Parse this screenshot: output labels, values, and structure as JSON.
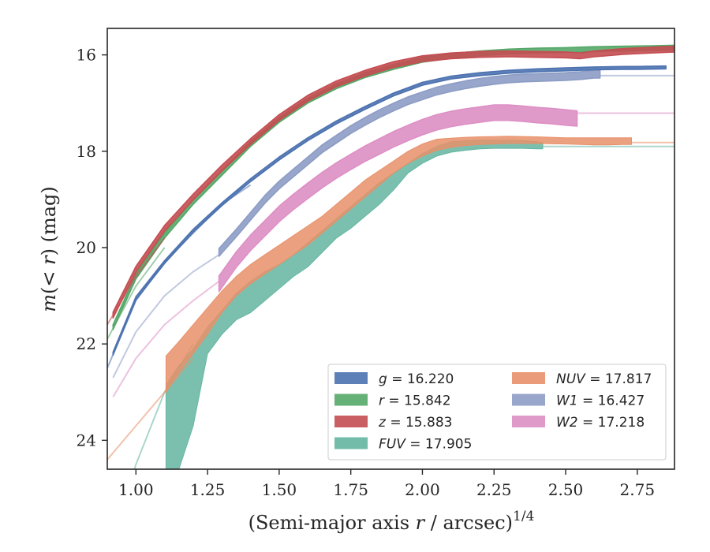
{
  "chart_data": {
    "type": "line",
    "xlabel": "(Semi-major axis r / arcsec)^1/4",
    "ylabel": "m(< r) (mag)",
    "xlim": [
      0.9,
      2.88
    ],
    "ylim": [
      24.6,
      15.45
    ],
    "y_inverted": true,
    "xticks": [
      1.0,
      1.25,
      1.5,
      1.75,
      2.0,
      2.25,
      2.5,
      2.75
    ],
    "xtick_labels": [
      "1.00",
      "1.25",
      "1.50",
      "1.75",
      "2.00",
      "2.25",
      "2.50",
      "2.75"
    ],
    "yticks": [
      16,
      18,
      20,
      22,
      24
    ],
    "ytick_labels": [
      "16",
      "18",
      "20",
      "22",
      "24"
    ],
    "legend_position": "lower-right",
    "legend": [
      {
        "key": "g",
        "text": "g = 16.220"
      },
      {
        "key": "r",
        "text": "r = 15.842"
      },
      {
        "key": "z",
        "text": "z = 15.883"
      },
      {
        "key": "FUV",
        "text": "FUV = 17.905"
      },
      {
        "key": "NUV",
        "text": "NUV = 17.817"
      },
      {
        "key": "W1",
        "text": "W1 = 16.427"
      },
      {
        "key": "W2",
        "text": "W2 = 17.218"
      }
    ],
    "series": [
      {
        "key": "g",
        "color": "#4c72b0",
        "total": 16.22,
        "band_width": 0.03,
        "extrap_x": [
          0.9,
          1.0,
          1.1,
          1.2,
          1.3,
          1.4
        ],
        "extrap_y": [
          22.5,
          21.1,
          20.3,
          19.7,
          19.1,
          18.7
        ],
        "x": [
          0.92,
          1.0,
          1.1,
          1.2,
          1.3,
          1.4,
          1.5,
          1.6,
          1.7,
          1.8,
          1.9,
          2.0,
          2.1,
          2.2,
          2.3,
          2.4,
          2.5,
          2.6,
          2.7,
          2.75,
          2.85
        ],
        "y": [
          22.2,
          21.05,
          20.3,
          19.65,
          19.1,
          18.6,
          18.15,
          17.75,
          17.4,
          17.1,
          16.82,
          16.6,
          16.47,
          16.4,
          16.35,
          16.32,
          16.3,
          16.28,
          16.27,
          16.27,
          16.26
        ]
      },
      {
        "key": "r",
        "color": "#55a868",
        "total": 15.842,
        "band_width": 0.05,
        "extrap_x": [
          0.9,
          1.0,
          1.1
        ],
        "extrap_y": [
          21.9,
          20.8,
          20.0
        ],
        "x": [
          0.92,
          1.0,
          1.1,
          1.2,
          1.3,
          1.4,
          1.5,
          1.6,
          1.7,
          1.8,
          1.9,
          2.0,
          2.1,
          2.2,
          2.3,
          2.4,
          2.5,
          2.6,
          2.7,
          2.8,
          2.88
        ],
        "y": [
          21.65,
          20.6,
          19.75,
          19.05,
          18.45,
          17.85,
          17.35,
          16.95,
          16.65,
          16.42,
          16.25,
          16.1,
          16.02,
          15.97,
          15.93,
          15.91,
          15.9,
          15.88,
          15.87,
          15.86,
          15.85
        ]
      },
      {
        "key": "z",
        "color": "#c44e52",
        "total": 15.883,
        "band_width": 0.06,
        "extrap_x": [
          0.9,
          1.0,
          1.1
        ],
        "extrap_y": [
          21.6,
          20.6,
          19.8
        ],
        "x": [
          0.92,
          1.0,
          1.1,
          1.2,
          1.3,
          1.4,
          1.5,
          1.6,
          1.7,
          1.8,
          1.9,
          2.0,
          2.1,
          2.2,
          2.3,
          2.4,
          2.5,
          2.55,
          2.6,
          2.7,
          2.8,
          2.88
        ],
        "y": [
          21.4,
          20.45,
          19.6,
          18.95,
          18.35,
          17.8,
          17.3,
          16.9,
          16.6,
          16.38,
          16.2,
          16.08,
          16.02,
          15.99,
          15.98,
          15.99,
          16.0,
          16.02,
          15.98,
          15.93,
          15.9,
          15.88
        ]
      },
      {
        "key": "FUV",
        "color": "#64b5a0",
        "total": 17.905,
        "band": true,
        "extrap_x": [
          0.9,
          1.0,
          1.1,
          1.2
        ],
        "extrap_y": [
          26.5,
          24.5,
          23.0,
          22.0
        ],
        "x": [
          1.105,
          1.15,
          1.2,
          1.25,
          1.3,
          1.35,
          1.4,
          1.45,
          1.5,
          1.55,
          1.6,
          1.65,
          1.7,
          1.75,
          1.8,
          1.85,
          1.9,
          1.95,
          2.0,
          2.05,
          2.1,
          2.15,
          2.2,
          2.25,
          2.3,
          2.35,
          2.4,
          2.42
        ],
        "y_low": [
          22.85,
          22.45,
          22.1,
          21.65,
          21.3,
          20.95,
          20.7,
          20.5,
          20.35,
          20.15,
          19.9,
          19.65,
          19.4,
          19.15,
          18.9,
          18.65,
          18.45,
          18.25,
          18.05,
          17.9,
          17.8,
          17.78,
          17.77,
          17.77,
          17.77,
          17.78,
          17.8,
          17.82
        ],
        "y_high": [
          25.0,
          24.6,
          23.7,
          22.2,
          21.8,
          21.5,
          21.35,
          21.1,
          20.85,
          20.6,
          20.4,
          20.1,
          19.8,
          19.6,
          19.35,
          19.1,
          18.8,
          18.45,
          18.25,
          18.1,
          18.02,
          17.98,
          17.95,
          17.94,
          17.94,
          17.94,
          17.95,
          17.95
        ],
        "after_x": [
          2.42,
          2.88
        ],
        "after_y": [
          17.9,
          17.9
        ]
      },
      {
        "key": "NUV",
        "color": "#e8906a",
        "total": 17.817,
        "band": true,
        "extrap_x": [
          0.9,
          1.0,
          1.1,
          1.2
        ],
        "extrap_y": [
          24.4,
          23.7,
          23.0,
          22.3
        ],
        "x": [
          1.105,
          1.15,
          1.2,
          1.25,
          1.3,
          1.35,
          1.4,
          1.45,
          1.5,
          1.55,
          1.6,
          1.65,
          1.7,
          1.75,
          1.8,
          1.85,
          1.9,
          1.95,
          2.0,
          2.05,
          2.1,
          2.15,
          2.2,
          2.3,
          2.4,
          2.5,
          2.6,
          2.65,
          2.7,
          2.73
        ],
        "y_low": [
          22.25,
          21.95,
          21.6,
          21.25,
          20.9,
          20.6,
          20.35,
          20.15,
          19.95,
          19.75,
          19.55,
          19.35,
          19.1,
          18.85,
          18.6,
          18.4,
          18.2,
          18.0,
          17.85,
          17.75,
          17.73,
          17.71,
          17.7,
          17.69,
          17.7,
          17.72,
          17.72,
          17.72,
          17.72,
          17.72
        ],
        "y_high": [
          23.0,
          22.6,
          22.2,
          21.8,
          21.35,
          21.0,
          20.75,
          20.55,
          20.35,
          20.15,
          19.95,
          19.7,
          19.45,
          19.2,
          18.95,
          18.7,
          18.45,
          18.25,
          18.1,
          17.98,
          17.92,
          17.88,
          17.86,
          17.84,
          17.84,
          17.85,
          17.87,
          17.87,
          17.86,
          17.86
        ],
        "after_x": [
          2.73,
          2.88
        ],
        "after_y": [
          17.82,
          17.82
        ]
      },
      {
        "key": "W1",
        "color": "#8c9cc4",
        "total": 16.427,
        "band_width": 0.08,
        "extrap_x": [
          0.92,
          1.0,
          1.1,
          1.2,
          1.29
        ],
        "extrap_y": [
          22.7,
          21.75,
          21.0,
          20.5,
          20.15
        ],
        "x": [
          1.29,
          1.35,
          1.4,
          1.45,
          1.5,
          1.55,
          1.6,
          1.65,
          1.7,
          1.75,
          1.8,
          1.85,
          1.9,
          1.95,
          2.0,
          2.05,
          2.1,
          2.15,
          2.2,
          2.25,
          2.3,
          2.35,
          2.4,
          2.45,
          2.5,
          2.55,
          2.6,
          2.62
        ],
        "y": [
          20.1,
          19.7,
          19.35,
          19.0,
          18.7,
          18.45,
          18.2,
          17.95,
          17.75,
          17.55,
          17.38,
          17.22,
          17.08,
          16.95,
          16.85,
          16.75,
          16.68,
          16.62,
          16.57,
          16.53,
          16.5,
          16.48,
          16.47,
          16.46,
          16.45,
          16.43,
          16.4,
          16.4
        ],
        "after_x": [
          2.62,
          2.88
        ],
        "after_y": [
          16.43,
          16.43
        ]
      },
      {
        "key": "W2",
        "color": "#dd8fc4",
        "total": 17.218,
        "band_width": 0.16,
        "extrap_x": [
          0.92,
          1.0,
          1.1,
          1.2,
          1.29
        ],
        "extrap_y": [
          23.1,
          22.3,
          21.6,
          21.1,
          20.7
        ],
        "x": [
          1.29,
          1.35,
          1.4,
          1.45,
          1.5,
          1.55,
          1.6,
          1.65,
          1.7,
          1.75,
          1.8,
          1.85,
          1.9,
          1.95,
          2.0,
          2.05,
          2.1,
          2.15,
          2.2,
          2.25,
          2.3,
          2.35,
          2.4,
          2.45,
          2.5,
          2.54
        ],
        "y": [
          20.75,
          20.25,
          19.9,
          19.6,
          19.3,
          19.05,
          18.82,
          18.6,
          18.4,
          18.22,
          18.05,
          17.9,
          17.75,
          17.62,
          17.5,
          17.4,
          17.33,
          17.28,
          17.24,
          17.2,
          17.2,
          17.22,
          17.25,
          17.27,
          17.3,
          17.32
        ],
        "after_x": [
          2.54,
          2.88
        ],
        "after_y": [
          17.21,
          17.21
        ]
      }
    ]
  }
}
